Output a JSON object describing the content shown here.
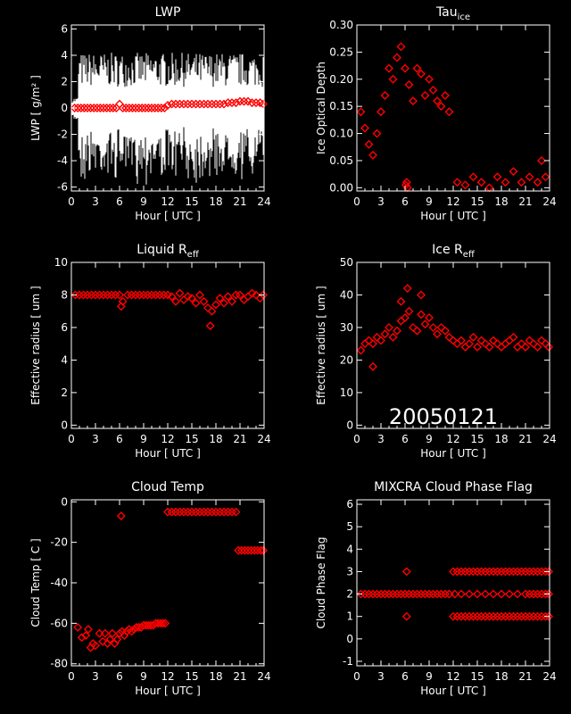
{
  "colors": {
    "background": "#000000",
    "axes": "#ffffff",
    "marker": "#ff0000",
    "lwp_trace": "#ffffff"
  },
  "date_stamp": "20050121",
  "chart_data": [
    {
      "id": "lwp",
      "type": "scatter",
      "title": "LWP",
      "title_sub": "",
      "xlabel": "Hour [ UTC ]",
      "ylabel": "LWP [ g/m² ]",
      "xlim": [
        0,
        24
      ],
      "ylim": [
        -6.3,
        6.3
      ],
      "xticks": [
        0,
        3,
        6,
        9,
        12,
        15,
        18,
        21,
        24
      ],
      "yticks": [
        -6,
        -4,
        -2,
        0,
        2,
        4,
        6
      ],
      "ytick_labels": [
        "-6",
        "-4",
        "-2",
        "0",
        "2",
        "4",
        "6"
      ],
      "background_trace": {
        "type": "line",
        "x_range": [
          0,
          24
        ],
        "y_range": [
          -5.0,
          5.3
        ],
        "note_color": "white"
      },
      "series": [
        {
          "x": [
            0.4,
            0.8,
            1.2,
            1.6,
            2.0,
            2.4,
            2.8,
            3.2,
            3.6,
            4.0,
            4.4,
            4.8,
            5.2,
            5.6,
            6.0,
            6.4,
            6.8,
            7.2,
            7.6,
            8.0,
            8.4,
            8.8,
            9.2,
            9.6,
            10.0,
            10.4,
            10.8,
            11.2,
            11.6,
            12.0,
            12.5,
            13.0,
            13.5,
            14.0,
            14.5,
            15.0,
            15.5,
            16.0,
            16.5,
            17.0,
            17.5,
            18.0,
            18.5,
            19.0,
            19.5,
            20.0,
            20.5,
            21.0,
            21.5,
            22.0,
            22.5,
            23.0,
            23.5,
            23.9
          ],
          "y": [
            0.0,
            0.0,
            0.0,
            0.0,
            0.0,
            0.0,
            0.0,
            0.0,
            0.0,
            0.0,
            0.0,
            0.0,
            0.0,
            0.0,
            0.3,
            0.0,
            0.0,
            0.0,
            0.0,
            0.0,
            0.0,
            0.0,
            0.0,
            0.0,
            0.0,
            0.0,
            0.0,
            0.0,
            0.0,
            0.2,
            0.3,
            0.3,
            0.3,
            0.3,
            0.3,
            0.3,
            0.3,
            0.3,
            0.3,
            0.3,
            0.3,
            0.3,
            0.3,
            0.3,
            0.4,
            0.4,
            0.4,
            0.5,
            0.5,
            0.5,
            0.4,
            0.4,
            0.4,
            0.3
          ]
        }
      ]
    },
    {
      "id": "tau",
      "type": "scatter",
      "title": "Tau",
      "title_sub": "ice",
      "xlabel": "Hour [ UTC ]",
      "ylabel": "Ice Optical Depth",
      "xlim": [
        0,
        24
      ],
      "ylim": [
        -0.006,
        0.3
      ],
      "xticks": [
        0,
        3,
        6,
        9,
        12,
        15,
        18,
        21,
        24
      ],
      "yticks": [
        0.0,
        0.05,
        0.1,
        0.15,
        0.2,
        0.25,
        0.3
      ],
      "ytick_labels": [
        "0.00",
        "0.05",
        "0.10",
        "0.15",
        "0.20",
        "0.25",
        "0.30"
      ],
      "series": [
        {
          "x": [
            0.5,
            1.0,
            1.5,
            2.0,
            2.5,
            3.0,
            3.5,
            4.0,
            4.5,
            5.0,
            5.5,
            6.0,
            6.5,
            7.0,
            7.5,
            8.0,
            8.5,
            9.0,
            9.5,
            10.0,
            10.5,
            11.0,
            11.5,
            12.5,
            13.5,
            14.5,
            15.5,
            16.5,
            17.5,
            18.5,
            19.5,
            20.5,
            21.5,
            22.5,
            23.0,
            23.5
          ],
          "y": [
            0.14,
            0.11,
            0.08,
            0.06,
            0.1,
            0.14,
            0.17,
            0.22,
            0.2,
            0.24,
            0.26,
            0.22,
            0.19,
            0.16,
            0.22,
            0.21,
            0.17,
            0.2,
            0.18,
            0.16,
            0.15,
            0.17,
            0.14,
            0.01,
            0.005,
            0.02,
            0.01,
            0.0,
            0.02,
            0.01,
            0.03,
            0.01,
            0.02,
            0.01,
            0.05,
            0.02
          ]
        },
        {
          "x": [
            6.1,
            6.2,
            6.3
          ],
          "y": [
            0.005,
            0.01,
            0.0
          ]
        }
      ]
    },
    {
      "id": "liq_reff",
      "type": "scatter",
      "title": "Liquid R",
      "title_sub": "eff",
      "xlabel": "Hour [ UTC ]",
      "ylabel": "Effective radius [ um ]",
      "xlim": [
        0,
        24
      ],
      "ylim": [
        -0.2,
        10
      ],
      "xticks": [
        0,
        3,
        6,
        9,
        12,
        15,
        18,
        21,
        24
      ],
      "yticks": [
        0,
        2,
        4,
        6,
        8,
        10
      ],
      "ytick_labels": [
        "0",
        "2",
        "4",
        "6",
        "8",
        "10"
      ],
      "series": [
        {
          "x": [
            0.5,
            1.0,
            1.5,
            2.0,
            2.5,
            3.0,
            3.5,
            4.0,
            4.5,
            5.0,
            5.5,
            6.0,
            6.2,
            6.4,
            7.0,
            7.5,
            8.0,
            8.5,
            9.0,
            9.5,
            10.0,
            10.5,
            11.0,
            11.5,
            12.0,
            12.5,
            13.0,
            13.5,
            14.0,
            14.5,
            15.0,
            15.5,
            16.0,
            16.5,
            17.0,
            17.3,
            17.5,
            18.0,
            18.5,
            19.0,
            19.5,
            20.0,
            20.5,
            21.0,
            21.5,
            22.0,
            22.5,
            23.0,
            23.5,
            23.9
          ],
          "y": [
            8.0,
            8.0,
            8.0,
            8.0,
            8.0,
            8.0,
            8.0,
            8.0,
            8.0,
            8.0,
            8.0,
            8.0,
            7.3,
            7.6,
            8.0,
            8.0,
            8.0,
            8.0,
            8.0,
            8.0,
            8.0,
            8.0,
            8.0,
            8.0,
            8.0,
            7.9,
            7.6,
            8.1,
            7.7,
            7.9,
            7.8,
            7.5,
            8.0,
            7.6,
            7.2,
            6.1,
            7.0,
            7.4,
            7.8,
            7.5,
            7.9,
            7.6,
            8.0,
            8.0,
            7.7,
            7.9,
            8.1,
            8.0,
            7.8,
            8.0
          ]
        }
      ]
    },
    {
      "id": "ice_reff",
      "type": "scatter",
      "title": "Ice R",
      "title_sub": "eff",
      "xlabel": "Hour [ UTC ]",
      "ylabel": "Effective radius [ um ]",
      "xlim": [
        0,
        24
      ],
      "ylim": [
        -1,
        50
      ],
      "xticks": [
        0,
        3,
        6,
        9,
        12,
        15,
        18,
        21,
        24
      ],
      "yticks": [
        0,
        10,
        20,
        30,
        40,
        50
      ],
      "ytick_labels": [
        "0",
        "10",
        "20",
        "30",
        "40",
        "50"
      ],
      "series": [
        {
          "x": [
            0.5,
            1.0,
            1.5,
            2.0,
            2.5,
            3.0,
            3.5,
            4.0,
            4.5,
            5.0,
            5.5,
            6.0,
            6.3,
            6.5,
            7.0,
            7.5,
            8.0,
            8.5,
            9.0,
            9.5,
            10.0,
            10.5,
            11.0,
            11.5,
            12.0,
            12.5,
            13.0,
            13.5,
            14.0,
            14.5,
            15.0,
            15.5,
            16.0,
            16.5,
            17.0,
            17.5,
            18.0,
            18.5,
            19.0,
            19.5,
            20.0,
            20.5,
            21.0,
            21.5,
            22.0,
            22.5,
            23.0,
            23.5,
            23.9,
            2.0,
            5.5,
            8.0
          ],
          "y": [
            23,
            25,
            26,
            25,
            27,
            26,
            28,
            30,
            27,
            29,
            32,
            33,
            42,
            35,
            30,
            29,
            34,
            31,
            33,
            30,
            28,
            30,
            29,
            27,
            26,
            25,
            26,
            24,
            25,
            27,
            24,
            26,
            25,
            24,
            26,
            25,
            24,
            25,
            26,
            27,
            24,
            25,
            24,
            26,
            25,
            24,
            26,
            25,
            24,
            18,
            38,
            40
          ]
        }
      ]
    },
    {
      "id": "cloud_temp",
      "type": "scatter",
      "title": "Cloud Temp",
      "title_sub": "",
      "xlabel": "Hour [ UTC ]",
      "ylabel": "Cloud Temp [ C ]",
      "xlim": [
        0,
        24
      ],
      "ylim": [
        -81,
        1
      ],
      "xticks": [
        0,
        3,
        6,
        9,
        12,
        15,
        18,
        21,
        24
      ],
      "yticks": [
        -80,
        -60,
        -40,
        -20,
        0
      ],
      "ytick_labels": [
        "-80",
        "-60",
        "-40",
        "-20",
        "0"
      ],
      "series": [
        {
          "x": [
            0.8,
            1.3,
            1.8,
            2.1,
            2.4,
            2.7,
            3.0,
            3.5,
            3.9,
            4.2,
            4.5,
            4.8,
            5.1,
            5.4,
            5.7,
            6.0,
            6.3,
            6.6,
            6.9,
            7.2,
            7.5,
            7.8,
            8.1,
            8.4,
            8.7,
            9.0,
            9.3,
            9.6,
            9.9,
            10.2,
            10.5,
            10.8,
            11.1,
            11.4,
            11.7,
            6.2
          ],
          "y": [
            -62,
            -67,
            -66,
            -63,
            -72,
            -70,
            -71,
            -65,
            -69,
            -65,
            -70,
            -68,
            -65,
            -70,
            -68,
            -65,
            -64,
            -66,
            -64,
            -63,
            -64,
            -63,
            -62,
            -62,
            -62,
            -61,
            -61,
            -61,
            -61,
            -61,
            -60,
            -60,
            -60,
            -60,
            -60,
            -7
          ]
        },
        {
          "x": [
            12.0,
            12.5,
            13.0,
            13.5,
            14.0,
            14.5,
            15.0,
            15.5,
            16.0,
            16.5,
            17.0,
            17.5,
            18.0,
            18.5,
            19.0,
            19.5,
            20.0,
            20.5
          ],
          "y": [
            -5,
            -5,
            -5,
            -5,
            -5,
            -5,
            -5,
            -5,
            -5,
            -5,
            -5,
            -5,
            -5,
            -5,
            -5,
            -5,
            -5,
            -5
          ]
        },
        {
          "x": [
            20.8,
            21.2,
            21.6,
            22.0,
            22.4,
            22.8,
            23.2,
            23.6,
            23.9
          ],
          "y": [
            -24,
            -24,
            -24,
            -24,
            -24,
            -24,
            -24,
            -24,
            -24
          ]
        }
      ]
    },
    {
      "id": "phase",
      "type": "scatter",
      "title": "MIXCRA Cloud Phase Flag",
      "title_sub": "",
      "xlabel": "Hour [ UTC ]",
      "ylabel": "Cloud Phase Flag",
      "xlim": [
        0,
        24
      ],
      "ylim": [
        -1.2,
        6.2
      ],
      "xticks": [
        0,
        3,
        6,
        9,
        12,
        15,
        18,
        21,
        24
      ],
      "yticks": [
        -1,
        0,
        1,
        2,
        3,
        4,
        5,
        6
      ],
      "ytick_labels": [
        "-1",
        "0",
        "1",
        "2",
        "3",
        "4",
        "5",
        "6"
      ],
      "series": [
        {
          "x": [
            0.5,
            1.0,
            1.5,
            2.0,
            2.5,
            3.0,
            3.5,
            4.0,
            4.5,
            5.0,
            5.5,
            6.0,
            6.5,
            7.0,
            7.5,
            8.0,
            8.5,
            9.0,
            9.5,
            10.0,
            10.5,
            11.0,
            11.5,
            12.2,
            13.0,
            14.0,
            15.0,
            16.0,
            17.0,
            18.0,
            19.0,
            20.0,
            21.0,
            21.5,
            22.0,
            22.5,
            23.0,
            23.5,
            23.9
          ],
          "y": [
            2,
            2,
            2,
            2,
            2,
            2,
            2,
            2,
            2,
            2,
            2,
            2,
            2,
            2,
            2,
            2,
            2,
            2,
            2,
            2,
            2,
            2,
            2,
            2,
            2,
            2,
            2,
            2,
            2,
            2,
            2,
            2,
            2,
            2,
            2,
            2,
            2,
            2,
            2
          ]
        },
        {
          "x": [
            6.2,
            6.2,
            12.0,
            12.5,
            13.0,
            13.5,
            14.0,
            14.5,
            15.0,
            15.5,
            16.0,
            16.5,
            17.0,
            17.5,
            18.0,
            18.5,
            19.0,
            19.5,
            20.0,
            20.5,
            21.0,
            21.5,
            22.0,
            22.5,
            23.0,
            23.5,
            23.9
          ],
          "y": [
            3,
            1,
            3,
            3,
            3,
            3,
            3,
            3,
            3,
            3,
            3,
            3,
            3,
            3,
            3,
            3,
            3,
            3,
            3,
            3,
            3,
            3,
            3,
            3,
            3,
            3,
            3
          ]
        },
        {
          "x": [
            12.0,
            12.5,
            13.0,
            13.5,
            14.0,
            14.5,
            15.0,
            15.5,
            16.0,
            16.5,
            17.0,
            17.5,
            18.0,
            18.5,
            19.0,
            19.5,
            20.0,
            20.5,
            21.0,
            21.5,
            22.0,
            22.5,
            23.0,
            23.5,
            23.9
          ],
          "y": [
            1,
            1,
            1,
            1,
            1,
            1,
            1,
            1,
            1,
            1,
            1,
            1,
            1,
            1,
            1,
            1,
            1,
            1,
            1,
            1,
            1,
            1,
            1,
            1,
            1
          ]
        }
      ]
    }
  ]
}
